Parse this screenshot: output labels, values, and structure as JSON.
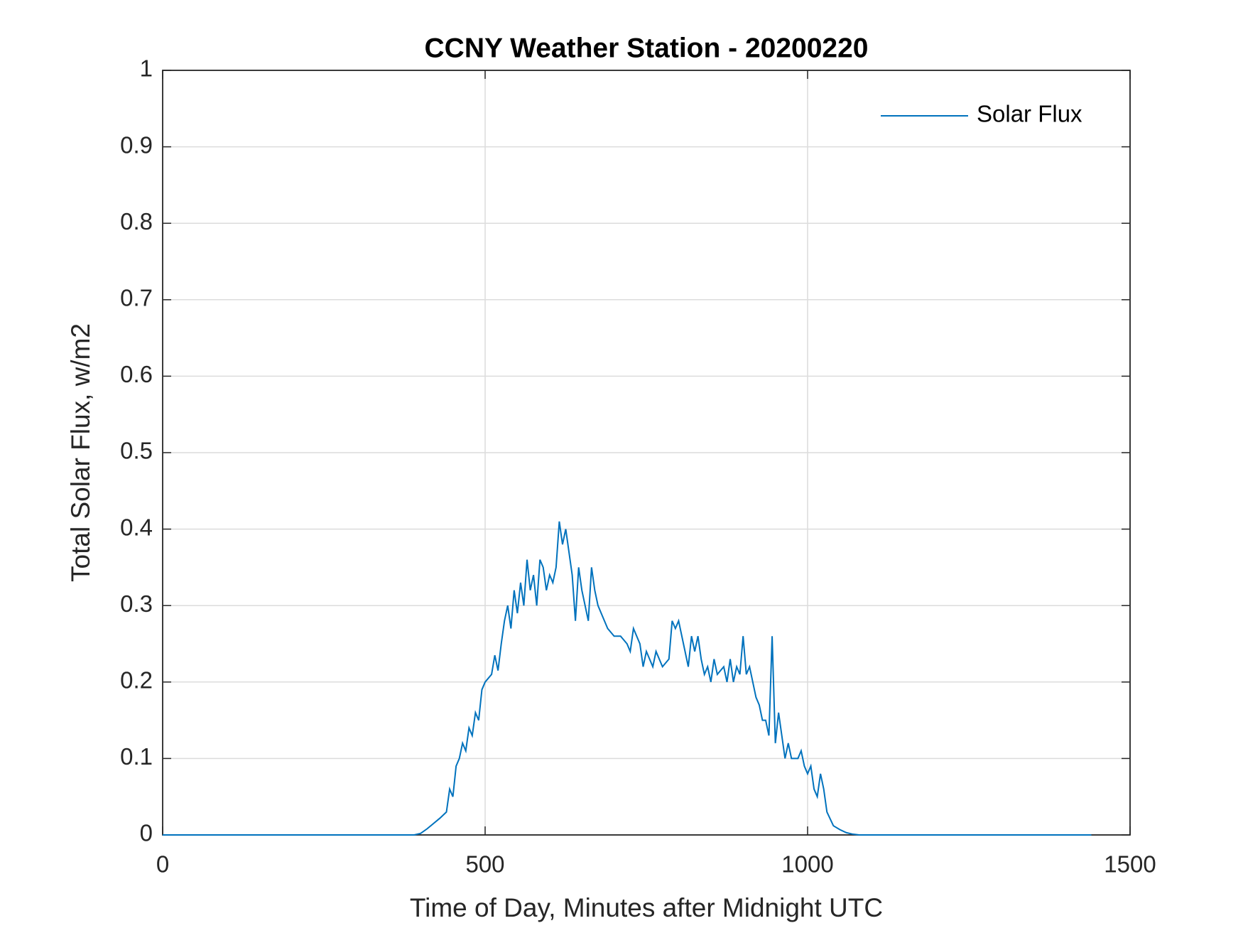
{
  "chart_data": {
    "type": "line",
    "title": "CCNY Weather Station - 20200220",
    "x_label": "Time of Day, Minutes after Midnight UTC",
    "y_label": "Total Solar Flux, w/m2",
    "x": [
      0,
      390,
      400,
      410,
      420,
      430,
      440,
      445,
      450,
      455,
      460,
      465,
      470,
      475,
      480,
      485,
      490,
      495,
      500,
      510,
      515,
      520,
      525,
      530,
      535,
      540,
      545,
      550,
      555,
      560,
      565,
      570,
      575,
      580,
      585,
      590,
      595,
      600,
      605,
      610,
      615,
      620,
      625,
      630,
      635,
      640,
      645,
      650,
      655,
      660,
      665,
      670,
      675,
      680,
      690,
      700,
      710,
      720,
      725,
      730,
      740,
      745,
      750,
      760,
      765,
      775,
      785,
      790,
      795,
      800,
      810,
      815,
      820,
      825,
      830,
      835,
      840,
      845,
      850,
      855,
      860,
      870,
      875,
      880,
      885,
      890,
      895,
      900,
      905,
      910,
      915,
      920,
      925,
      930,
      935,
      940,
      945,
      950,
      955,
      960,
      965,
      970,
      975,
      985,
      990,
      995,
      1000,
      1005,
      1010,
      1015,
      1020,
      1025,
      1030,
      1040,
      1050,
      1060,
      1070,
      1080,
      1440
    ],
    "series": [
      {
        "name": "Solar Flux",
        "color": "#0072BD",
        "values": [
          0,
          0,
          0.002,
          0.008,
          0.015,
          0.022,
          0.03,
          0.06,
          0.05,
          0.09,
          0.1,
          0.12,
          0.11,
          0.14,
          0.13,
          0.16,
          0.15,
          0.19,
          0.2,
          0.21,
          0.235,
          0.215,
          0.25,
          0.28,
          0.3,
          0.27,
          0.32,
          0.29,
          0.33,
          0.3,
          0.36,
          0.32,
          0.34,
          0.3,
          0.36,
          0.35,
          0.32,
          0.34,
          0.33,
          0.35,
          0.41,
          0.38,
          0.4,
          0.37,
          0.34,
          0.28,
          0.35,
          0.32,
          0.3,
          0.28,
          0.35,
          0.32,
          0.3,
          0.29,
          0.27,
          0.26,
          0.26,
          0.25,
          0.24,
          0.27,
          0.25,
          0.22,
          0.24,
          0.22,
          0.24,
          0.22,
          0.23,
          0.28,
          0.27,
          0.28,
          0.24,
          0.22,
          0.26,
          0.24,
          0.26,
          0.23,
          0.21,
          0.22,
          0.2,
          0.23,
          0.21,
          0.22,
          0.2,
          0.23,
          0.2,
          0.22,
          0.21,
          0.26,
          0.21,
          0.22,
          0.2,
          0.18,
          0.17,
          0.15,
          0.15,
          0.13,
          0.26,
          0.12,
          0.16,
          0.13,
          0.1,
          0.12,
          0.1,
          0.1,
          0.11,
          0.09,
          0.08,
          0.09,
          0.06,
          0.05,
          0.08,
          0.06,
          0.03,
          0.012,
          0.007,
          0.003,
          0.001,
          0,
          0
        ]
      }
    ],
    "xlim": [
      0,
      1500
    ],
    "xticks": [
      0,
      500,
      1000,
      1500
    ],
    "ylim": [
      0,
      1
    ],
    "yticks": [
      0,
      0.1,
      0.2,
      0.3,
      0.4,
      0.5,
      0.6,
      0.7,
      0.8,
      0.9,
      1
    ],
    "grid": true,
    "legend": "northeast"
  }
}
